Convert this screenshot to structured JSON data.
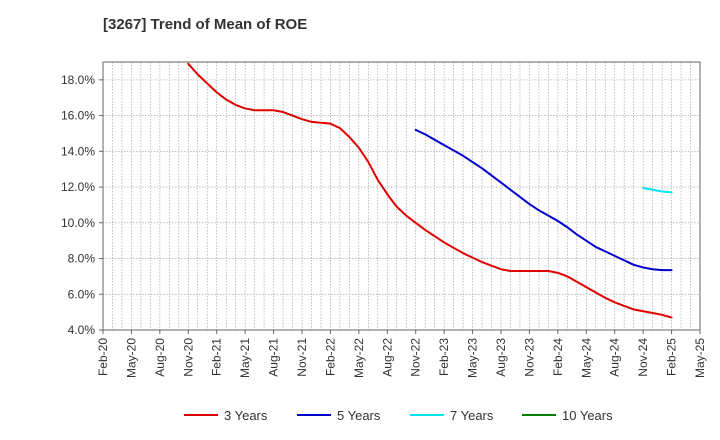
{
  "chart_data": {
    "type": "line",
    "title": "[3267]  Trend of Mean of ROE",
    "xlabel": "",
    "ylabel": "",
    "ylim": [
      4.0,
      19.0
    ],
    "y_ticks": [
      "4.0%",
      "6.0%",
      "8.0%",
      "10.0%",
      "12.0%",
      "14.0%",
      "16.0%",
      "18.0%"
    ],
    "y_tick_values": [
      4,
      6,
      8,
      10,
      12,
      14,
      16,
      18
    ],
    "x_ticks": [
      "Feb-20",
      "May-20",
      "Aug-20",
      "Nov-20",
      "Feb-21",
      "May-21",
      "Aug-21",
      "Nov-21",
      "Feb-22",
      "May-22",
      "Aug-22",
      "Nov-22",
      "Feb-23",
      "May-23",
      "Aug-23",
      "Nov-23",
      "Feb-24",
      "May-24",
      "Aug-24",
      "Nov-24",
      "Feb-25",
      "May-25"
    ],
    "grid": true,
    "legend_position": "bottom",
    "series": [
      {
        "name": "3 Years",
        "color": "#e00000",
        "points": [
          [
            "Nov-20",
            18.9
          ],
          [
            "Dec-20",
            18.3
          ],
          [
            "Jan-21",
            17.8
          ],
          [
            "Feb-21",
            17.3
          ],
          [
            "Mar-21",
            16.9
          ],
          [
            "Apr-21",
            16.6
          ],
          [
            "May-21",
            16.4
          ],
          [
            "Jun-21",
            16.3
          ],
          [
            "Jul-21",
            16.3
          ],
          [
            "Aug-21",
            16.3
          ],
          [
            "Sep-21",
            16.2
          ],
          [
            "Oct-21",
            16.0
          ],
          [
            "Nov-21",
            15.8
          ],
          [
            "Dec-21",
            15.65
          ],
          [
            "Jan-22",
            15.6
          ],
          [
            "Feb-22",
            15.55
          ],
          [
            "Mar-22",
            15.3
          ],
          [
            "Apr-22",
            14.8
          ],
          [
            "May-22",
            14.2
          ],
          [
            "Jun-22",
            13.4
          ],
          [
            "Jul-22",
            12.4
          ],
          [
            "Aug-22",
            11.6
          ],
          [
            "Sep-22",
            10.9
          ],
          [
            "Oct-22",
            10.4
          ],
          [
            "Nov-22",
            10.0
          ],
          [
            "Dec-22",
            9.6
          ],
          [
            "Jan-23",
            9.25
          ],
          [
            "Feb-23",
            8.9
          ],
          [
            "Mar-23",
            8.6
          ],
          [
            "Apr-23",
            8.3
          ],
          [
            "May-23",
            8.05
          ],
          [
            "Jun-23",
            7.8
          ],
          [
            "Jul-23",
            7.6
          ],
          [
            "Aug-23",
            7.4
          ],
          [
            "Sep-23",
            7.3
          ],
          [
            "Oct-23",
            7.3
          ],
          [
            "Nov-23",
            7.3
          ],
          [
            "Dec-23",
            7.3
          ],
          [
            "Jan-24",
            7.3
          ],
          [
            "Feb-24",
            7.2
          ],
          [
            "Mar-24",
            7.0
          ],
          [
            "Apr-24",
            6.7
          ],
          [
            "May-24",
            6.4
          ],
          [
            "Jun-24",
            6.1
          ],
          [
            "Jul-24",
            5.8
          ],
          [
            "Aug-24",
            5.55
          ],
          [
            "Sep-24",
            5.35
          ],
          [
            "Oct-24",
            5.15
          ],
          [
            "Nov-24",
            5.05
          ],
          [
            "Dec-24",
            4.95
          ],
          [
            "Jan-25",
            4.85
          ],
          [
            "Feb-25",
            4.7
          ]
        ]
      },
      {
        "name": "5 Years",
        "color": "#0000cc",
        "points": [
          [
            "Nov-22",
            15.2
          ],
          [
            "Dec-22",
            14.95
          ],
          [
            "Jan-23",
            14.65
          ],
          [
            "Feb-23",
            14.35
          ],
          [
            "Mar-23",
            14.05
          ],
          [
            "Apr-23",
            13.75
          ],
          [
            "May-23",
            13.4
          ],
          [
            "Jun-23",
            13.05
          ],
          [
            "Jul-23",
            12.65
          ],
          [
            "Aug-23",
            12.25
          ],
          [
            "Sep-23",
            11.85
          ],
          [
            "Oct-23",
            11.45
          ],
          [
            "Nov-23",
            11.05
          ],
          [
            "Dec-23",
            10.7
          ],
          [
            "Jan-24",
            10.4
          ],
          [
            "Feb-24",
            10.1
          ],
          [
            "Mar-24",
            9.75
          ],
          [
            "Apr-24",
            9.35
          ],
          [
            "May-24",
            9.0
          ],
          [
            "Jun-24",
            8.65
          ],
          [
            "Jul-24",
            8.4
          ],
          [
            "Aug-24",
            8.15
          ],
          [
            "Sep-24",
            7.9
          ],
          [
            "Oct-24",
            7.65
          ],
          [
            "Nov-24",
            7.5
          ],
          [
            "Dec-24",
            7.4
          ],
          [
            "Jan-25",
            7.35
          ],
          [
            "Feb-25",
            7.35
          ]
        ]
      },
      {
        "name": "7 Years",
        "color": "#00e5ee",
        "points": [
          [
            "Nov-24",
            11.95
          ],
          [
            "Dec-24",
            11.85
          ],
          [
            "Jan-25",
            11.75
          ],
          [
            "Feb-25",
            11.7
          ]
        ]
      },
      {
        "name": "10 Years",
        "color": "#008000",
        "points": []
      }
    ]
  }
}
